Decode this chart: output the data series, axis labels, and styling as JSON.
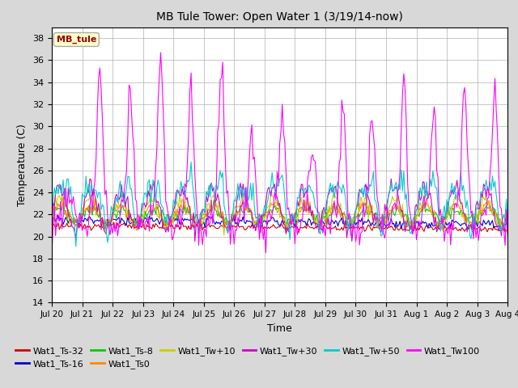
{
  "title": "MB Tule Tower: Open Water 1 (3/19/14-now)",
  "xlabel": "Time",
  "ylabel": "Temperature (C)",
  "ylim": [
    14,
    39
  ],
  "yticks": [
    14,
    16,
    18,
    20,
    22,
    24,
    26,
    28,
    30,
    32,
    34,
    36,
    38
  ],
  "legend_label": "MB_tule",
  "series_colors": {
    "Wat1_Ts-32": "#cc0000",
    "Wat1_Ts-16": "#0000cc",
    "Wat1_Ts-8": "#00cc00",
    "Wat1_Ts0": "#ff8800",
    "Wat1_Tw+10": "#cccc00",
    "Wat1_Tw+30": "#cc00cc",
    "Wat1_Tw+50": "#00cccc",
    "Wat1_Tw100": "#ff00ff"
  },
  "background_color": "#d8d8d8",
  "plot_bg_color": "#ffffff",
  "grid_color": "#b0b0b0",
  "x_tick_labels": [
    "Jul 20",
    "Jul 21",
    "Jul 22",
    "Jul 23",
    "Jul 24",
    "Jul 25",
    "Jul 26",
    "Jul 27",
    "Jul 28",
    "Jul 29",
    "Jul 30",
    "Jul 31",
    "Aug 1",
    "Aug 2",
    "Aug 3",
    "Aug 4"
  ],
  "figsize": [
    6.4,
    4.8
  ],
  "dpi": 100
}
